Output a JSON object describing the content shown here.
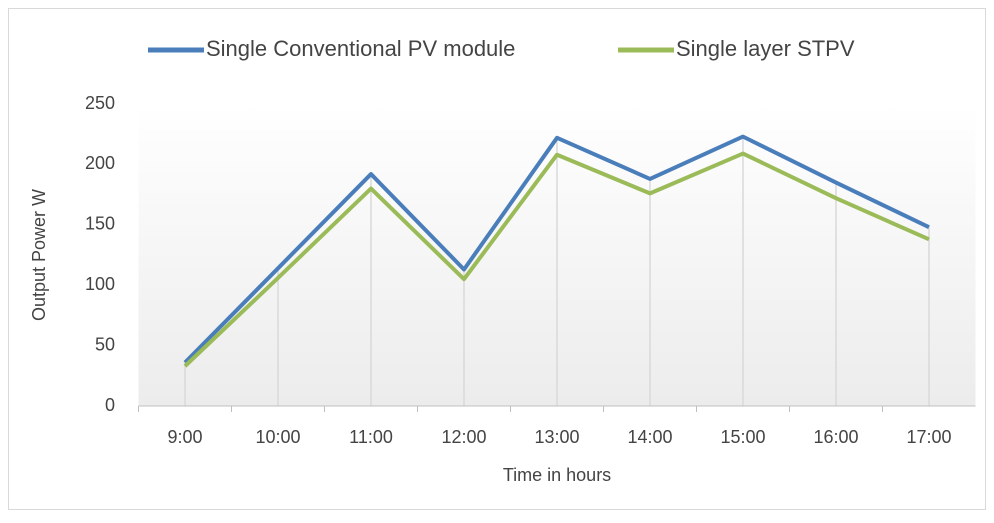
{
  "chart_data": {
    "type": "line",
    "x_label": "Time in hours",
    "y_label": "Output Power W",
    "categories": [
      "9:00",
      "10:00",
      "11:00",
      "12:00",
      "13:00",
      "14:00",
      "15:00",
      "16:00",
      "17:00"
    ],
    "series": [
      {
        "name": "Single Conventional PV module",
        "color": "#4a7ebb",
        "values": [
          36,
          114,
          192,
          113,
          222,
          188,
          223,
          185,
          148
        ]
      },
      {
        "name": "Single layer STPV",
        "color": "#9bbb59",
        "values": [
          33,
          106,
          180,
          105,
          208,
          176,
          209,
          172,
          138
        ]
      }
    ],
    "ylim": [
      0,
      250
    ],
    "yticks": [
      0,
      50,
      100,
      150,
      200,
      250
    ],
    "legend": "top",
    "drop_lines": true,
    "grid": false
  }
}
